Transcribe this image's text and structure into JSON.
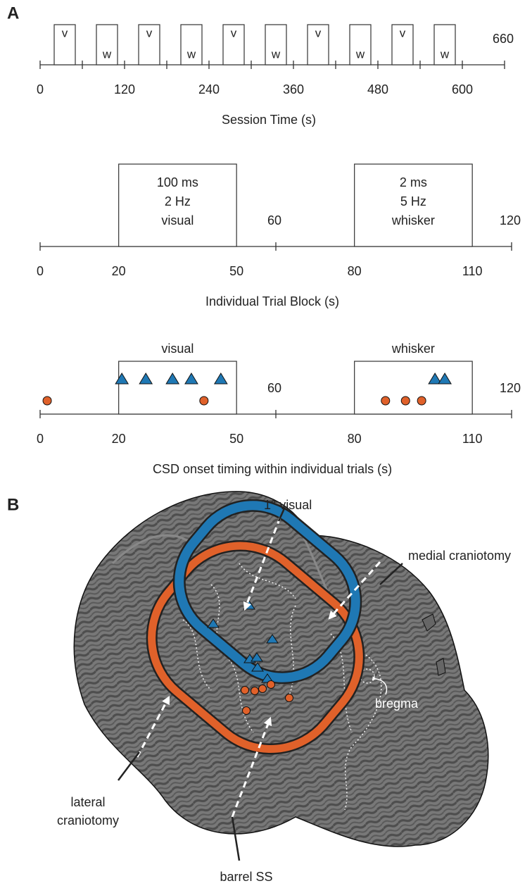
{
  "panel_labels": [
    "A",
    "B"
  ],
  "chart_data": [
    {
      "type": "timeline",
      "xlabel": "Session Time (s)",
      "xlim": [
        0,
        660
      ],
      "xticks": [
        0,
        120,
        240,
        360,
        480,
        600
      ],
      "xticks_top": [
        660
      ],
      "tick_marks": [
        0,
        60,
        120,
        180,
        240,
        300,
        360,
        420,
        480,
        540,
        600,
        660
      ],
      "intervals": [
        {
          "label": "v",
          "start": 20,
          "end": 50
        },
        {
          "label": "w",
          "start": 80,
          "end": 110
        },
        {
          "label": "v",
          "start": 140,
          "end": 170
        },
        {
          "label": "w",
          "start": 200,
          "end": 230
        },
        {
          "label": "v",
          "start": 260,
          "end": 290
        },
        {
          "label": "w",
          "start": 320,
          "end": 350
        },
        {
          "label": "v",
          "start": 380,
          "end": 410
        },
        {
          "label": "w",
          "start": 440,
          "end": 470
        },
        {
          "label": "v",
          "start": 500,
          "end": 530
        },
        {
          "label": "w",
          "start": 560,
          "end": 590
        }
      ]
    },
    {
      "type": "timeline",
      "xlabel": "Individual Trial Block (s)",
      "xlim": [
        0,
        120
      ],
      "xticks": [
        0,
        20,
        50,
        80,
        110
      ],
      "xticks_top": [
        60,
        120
      ],
      "tick_marks": [
        0,
        60,
        120
      ],
      "intervals": [
        {
          "lines": [
            "100 ms",
            "2 Hz",
            "visual"
          ],
          "start": 20,
          "end": 50
        },
        {
          "lines": [
            "2 ms",
            "5 Hz",
            "whisker"
          ],
          "start": 80,
          "end": 110
        }
      ]
    },
    {
      "type": "timeline",
      "xlabel": "CSD onset timing within individual trials (s)",
      "xlim": [
        0,
        120
      ],
      "xticks": [
        0,
        20,
        50,
        80,
        110
      ],
      "xticks_top": [
        60,
        120
      ],
      "tick_marks": [
        0,
        60,
        120
      ],
      "intervals": [
        {
          "label": "visual",
          "start": 20,
          "end": 50
        },
        {
          "label": "whisker",
          "start": 80,
          "end": 110
        }
      ],
      "series": [
        {
          "marker": "triangle",
          "color": "#1f78b4",
          "x": [
            20.8,
            26.9,
            33.7,
            38.5,
            46.0,
            100.5,
            103.0
          ]
        },
        {
          "marker": "circle",
          "color": "#e0612a",
          "x": [
            1.8,
            41.7,
            87.9,
            93.0,
            97.1
          ]
        }
      ]
    }
  ],
  "diagram": {
    "labels": {
      "visual": "1° visual",
      "medial": "medial craniotomy",
      "bregma": "bregma",
      "lateral": [
        "lateral",
        "craniotomy"
      ],
      "barrel": "barrel SS"
    }
  }
}
